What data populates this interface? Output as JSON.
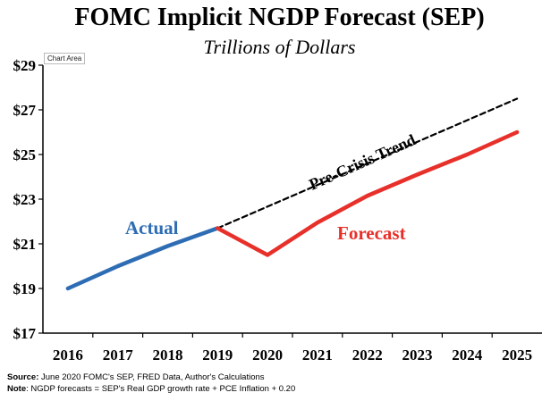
{
  "title": "FOMC Implicit NGDP Forecast (SEP)",
  "subtitle": "Trillions of Dollars",
  "chart_area_label": "Chart Area",
  "footer": {
    "source_label": "Source:",
    "source_text": "June 2020 FOMC's SEP, FRED Data, Author's Calculations",
    "note_label": "Note",
    "note_text": ": NGDP forecasts = SEP's Real GDP growth rate + PCE Inflation + 0.20"
  },
  "chart_data": {
    "type": "line",
    "title": "FOMC Implicit NGDP Forecast (SEP)",
    "subtitle": "Trillions of Dollars",
    "categories": [
      "2016",
      "2017",
      "2018",
      "2019",
      "2020",
      "2021",
      "2022",
      "2023",
      "2024",
      "2025"
    ],
    "y_ticks": [
      "$17",
      "$19",
      "$21",
      "$23",
      "$25",
      "$27",
      "$29"
    ],
    "ylim": [
      17,
      29
    ],
    "grid": false,
    "series": [
      {
        "name": "Actual",
        "color": "#2e6db4",
        "style": "solid",
        "x": [
          "2016",
          "2017",
          "2018",
          "2019"
        ],
        "values": [
          19.0,
          20.0,
          20.9,
          21.7
        ]
      },
      {
        "name": "Pre-Crisis Trend",
        "color": "#000000",
        "style": "dashed",
        "x": [
          "2019",
          "2025"
        ],
        "values": [
          21.7,
          27.5
        ]
      },
      {
        "name": "Forecast",
        "color": "#e8302a",
        "style": "solid",
        "x": [
          "2019",
          "2020",
          "2021",
          "2022",
          "2023",
          "2024",
          "2025"
        ],
        "values": [
          21.7,
          20.5,
          21.95,
          23.15,
          24.1,
          25.0,
          26.0
        ]
      }
    ]
  }
}
